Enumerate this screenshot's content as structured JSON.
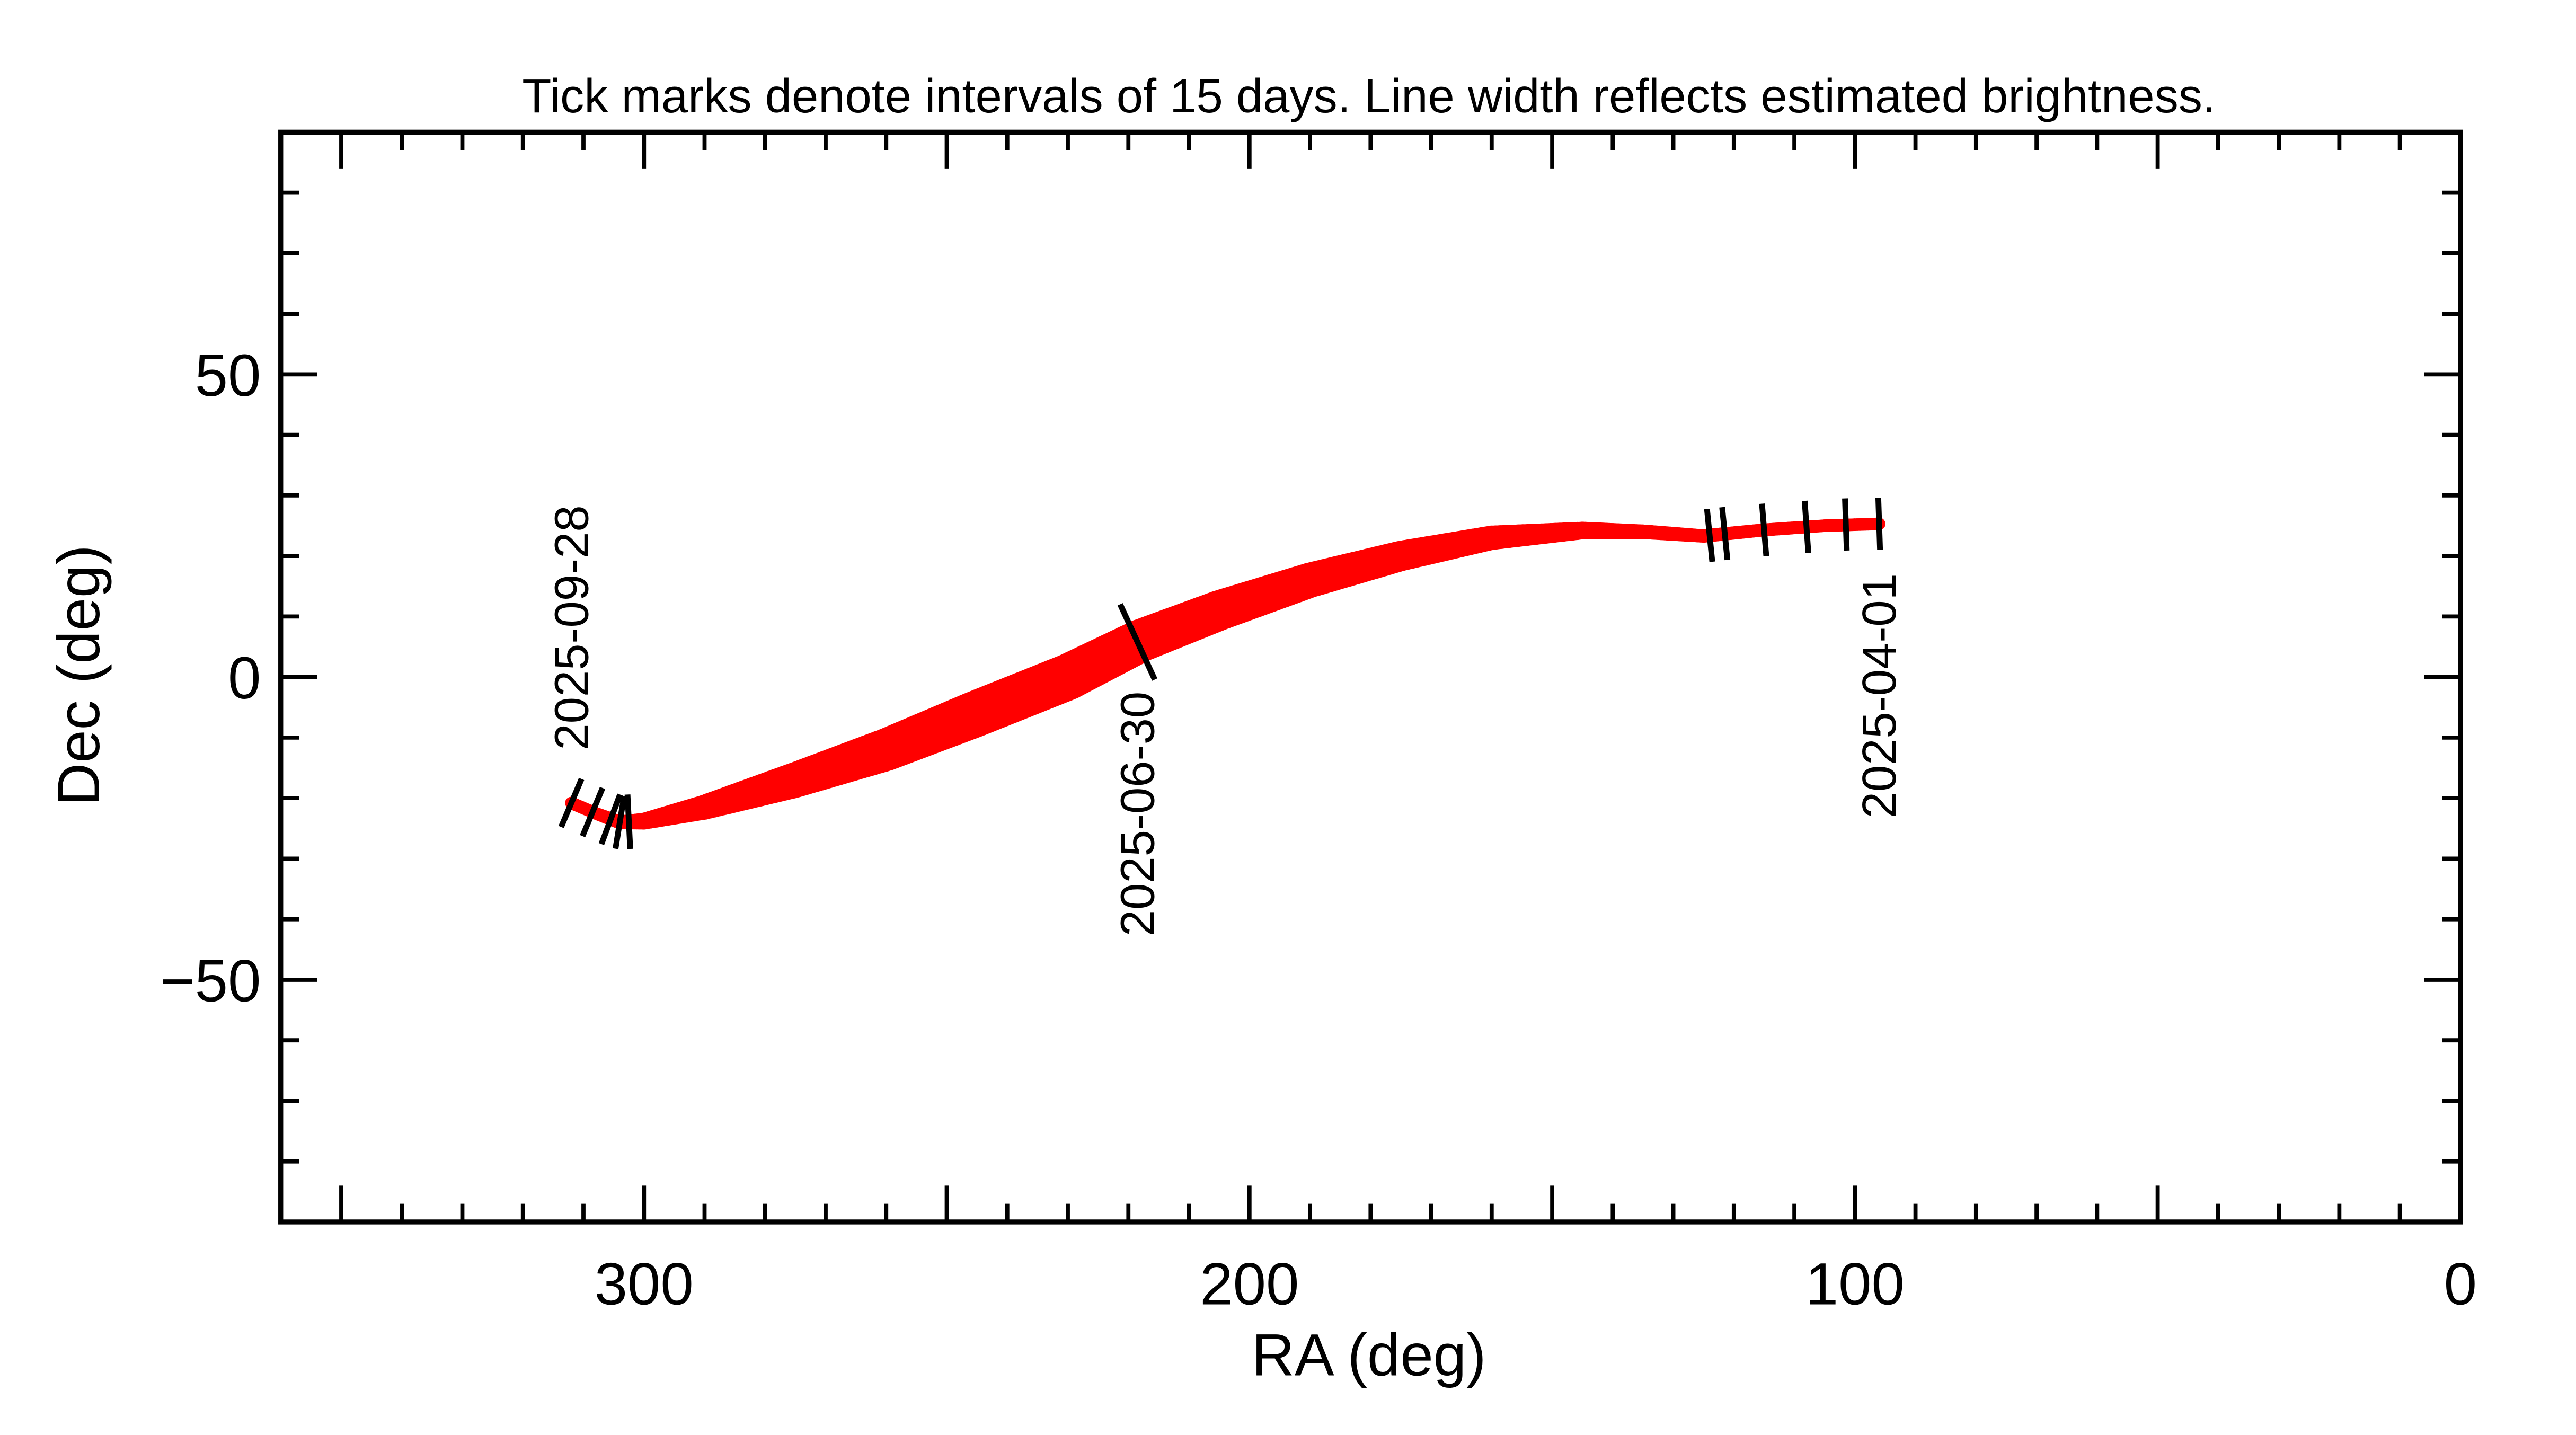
{
  "chart_data": {
    "type": "line",
    "title": "Tick marks denote intervals of 15 days.  Line width reflects estimated brightness.",
    "xlabel": "RA (deg)",
    "ylabel": "Dec (deg)",
    "xlim": [
      360,
      0
    ],
    "ylim": [
      -90,
      90
    ],
    "x_reversed": true,
    "x_ticks": [
      300,
      200,
      100,
      0
    ],
    "x_tick_labels": [
      "300",
      "200",
      "100",
      "0"
    ],
    "y_ticks": [
      50,
      0,
      -50
    ],
    "y_tick_labels": [
      "50",
      "0",
      "−50"
    ],
    "minor_tick_step": 10,
    "grid": false,
    "line_color": "#ff0000",
    "tick_color": "#000000",
    "track": {
      "ra": [
        96,
        105,
        115,
        122,
        125,
        135,
        145,
        160,
        175,
        190,
        205,
        218,
        230,
        245,
        260,
        275,
        290,
        300,
        304,
        308,
        312
      ],
      "dec": [
        25.3,
        25,
        24.3,
        23.6,
        23.3,
        24,
        24.2,
        23,
        20,
        16,
        11,
        6,
        0,
        -6,
        -12,
        -17,
        -21.5,
        -23.8,
        -24,
        -22.5,
        -20.8
      ],
      "relative_brightness": [
        0.15,
        0.15,
        0.16,
        0.17,
        0.17,
        0.2,
        0.28,
        0.45,
        0.6,
        0.72,
        0.85,
        0.92,
        1.0,
        1.0,
        0.9,
        0.72,
        0.45,
        0.25,
        0.18,
        0.15,
        0.15
      ]
    },
    "interval_ticks": [
      {
        "ra": 96,
        "dec": 25.3
      },
      {
        "ra": 101.5,
        "dec": 25.2
      },
      {
        "ra": 108,
        "dec": 24.8
      },
      {
        "ra": 115,
        "dec": 24.3
      },
      {
        "ra": 121.5,
        "dec": 23.7
      },
      {
        "ra": 124,
        "dec": 23.4
      },
      {
        "ra": 218.5,
        "dec": 5.8
      },
      {
        "ra": 302.5,
        "dec": -23.9
      },
      {
        "ra": 304,
        "dec": -24
      },
      {
        "ra": 305.5,
        "dec": -23.5
      },
      {
        "ra": 308.5,
        "dec": -22.3
      },
      {
        "ra": 312,
        "dec": -20.8
      }
    ],
    "date_labels": [
      {
        "text": "2025-09-28",
        "ra": 312,
        "dec": -20.8,
        "position": "above"
      },
      {
        "text": "2025-06-30",
        "ra": 218.5,
        "dec": 5.8,
        "position": "below"
      },
      {
        "text": "2025-04-01",
        "ra": 96,
        "dec": 25.3,
        "position": "below"
      }
    ]
  }
}
